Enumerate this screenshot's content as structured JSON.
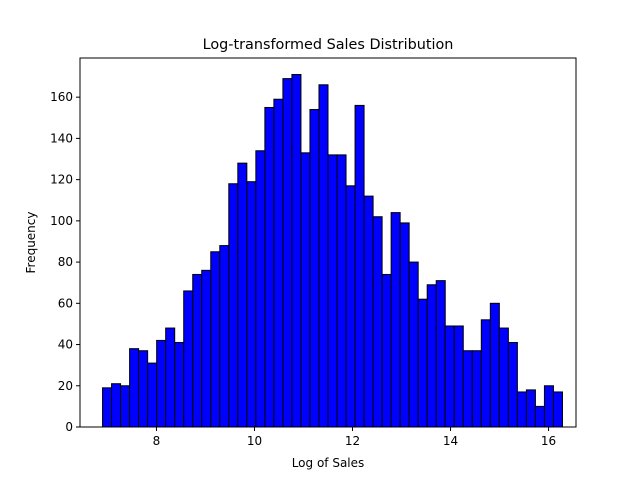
{
  "chart_data": {
    "type": "bar",
    "title": "Log-transformed Sales Distribution",
    "xlabel": "Log of Sales",
    "ylabel": "Frequency",
    "xlim": [
      6.44,
      16.56
    ],
    "ylim": [
      0,
      179
    ],
    "xticks": [
      8,
      10,
      12,
      14,
      16
    ],
    "yticks": [
      0,
      20,
      40,
      60,
      80,
      100,
      120,
      140,
      160
    ],
    "bin_start": 6.9,
    "bin_width": 0.184,
    "values": [
      19,
      21,
      20,
      38,
      37,
      31,
      42,
      48,
      41,
      66,
      74,
      76,
      85,
      88,
      118,
      128,
      119,
      134,
      155,
      159,
      169,
      171,
      133,
      154,
      166,
      132,
      132,
      117,
      156,
      112,
      102,
      74,
      104,
      99,
      80,
      62,
      69,
      71,
      49,
      49,
      37,
      37,
      52,
      60,
      48,
      41,
      17,
      18,
      10,
      20,
      17
    ],
    "bar_color": "#0000ff",
    "edge_color": "#000000",
    "grid": false
  }
}
